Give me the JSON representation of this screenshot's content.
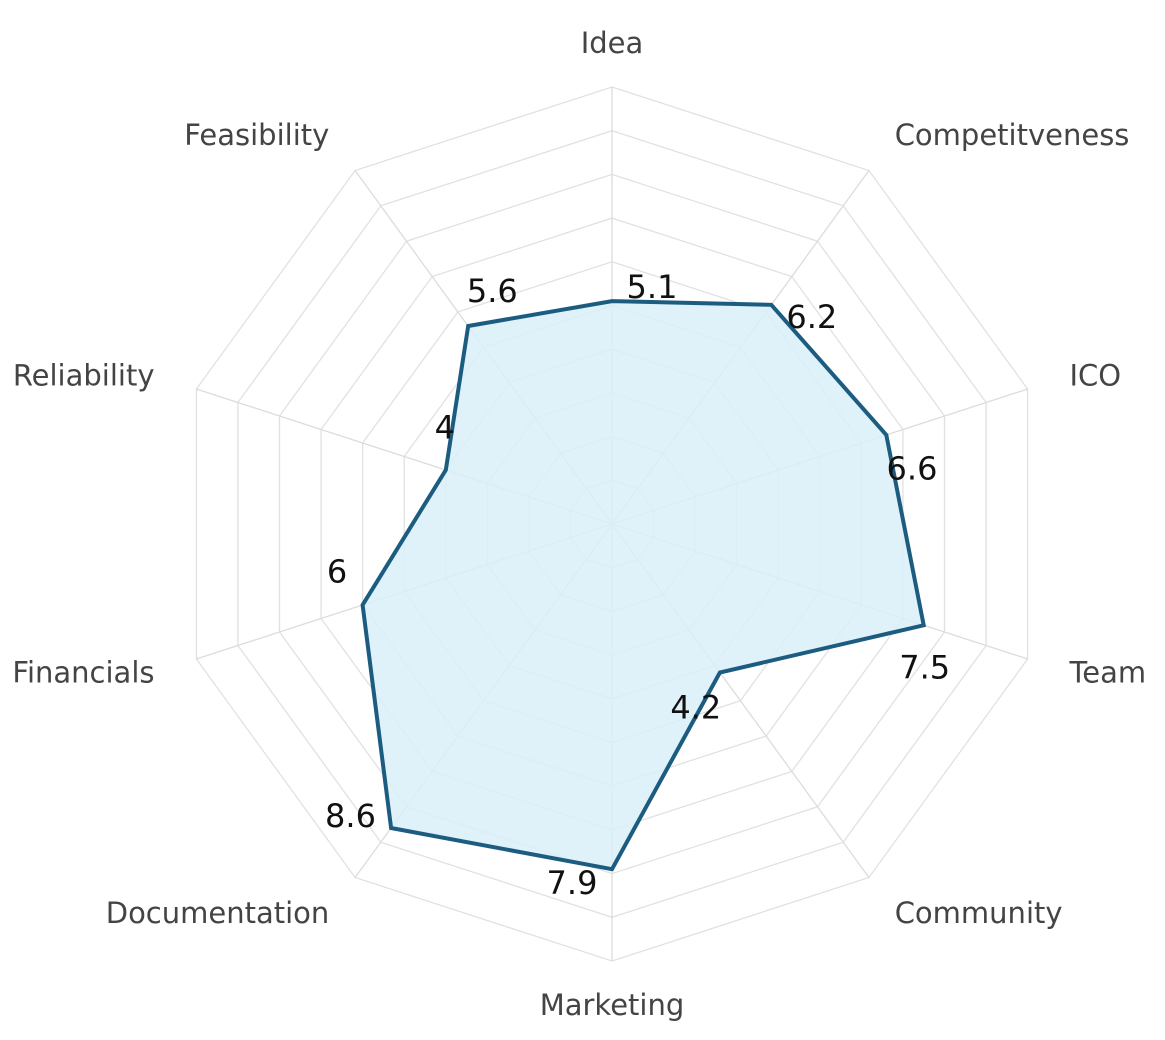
{
  "chart_data": {
    "type": "radar",
    "axes": [
      "Idea",
      "Competitveness",
      "ICO",
      "Team",
      "Community",
      "Marketing",
      "Documentation",
      "Financials",
      "Reliability",
      "Feasibility"
    ],
    "values": [
      5.1,
      6.2,
      6.6,
      7.5,
      4.2,
      7.9,
      8.6,
      6,
      4,
      5.6
    ],
    "value_labels": [
      "5.1",
      "6.2",
      "6.6",
      "7.5",
      "4.2",
      "7.9",
      "8.6",
      "6",
      "4",
      "5.6"
    ],
    "range": [
      0,
      10
    ],
    "grid_levels": 10,
    "grid": true,
    "legend": "none",
    "colors": {
      "line": "#1c5c80",
      "fill": "#d9eef8",
      "grid": "#e1e1e1",
      "axis_text": "#444444",
      "value_text": "#111111"
    }
  }
}
